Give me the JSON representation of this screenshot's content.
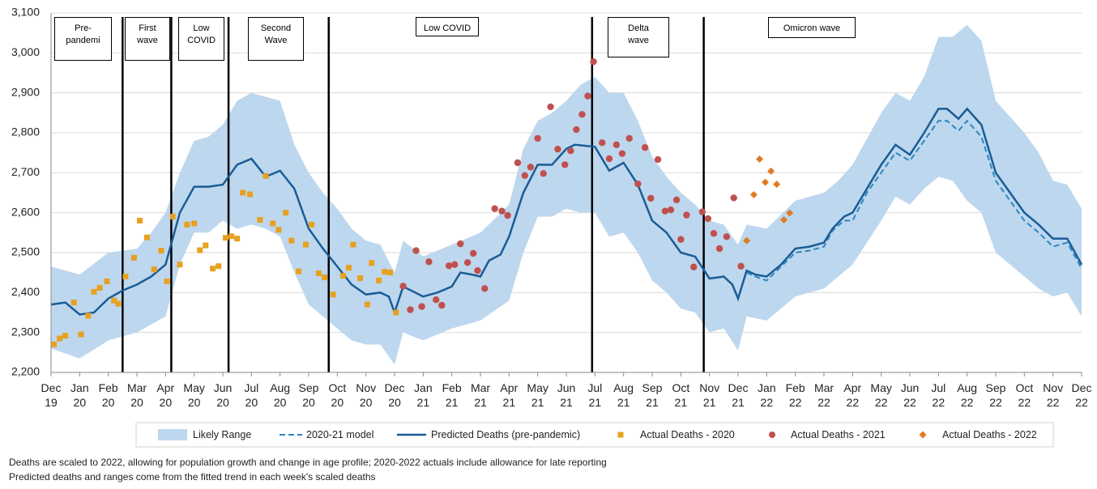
{
  "chart_data": {
    "type": "line",
    "xlim": [
      0,
      36
    ],
    "ylim": [
      2200,
      3100
    ],
    "yticks": [
      {
        "value": 2200,
        "label": "2,200"
      },
      {
        "value": 2300,
        "label": "2,300"
      },
      {
        "value": 2400,
        "label": "2,400"
      },
      {
        "value": 2500,
        "label": "2,500"
      },
      {
        "value": 2600,
        "label": "2,600"
      },
      {
        "value": 2700,
        "label": "2,700"
      },
      {
        "value": 2800,
        "label": "2,800"
      },
      {
        "value": 2900,
        "label": "2,900"
      },
      {
        "value": 3000,
        "label": "3,000"
      },
      {
        "value": 3100,
        "label": "3,100"
      }
    ],
    "xticks": [
      {
        "value": 0,
        "label": "Dec 19"
      },
      {
        "value": 1,
        "label": "Jan 20"
      },
      {
        "value": 2,
        "label": "Feb 20"
      },
      {
        "value": 3,
        "label": "Mar 20"
      },
      {
        "value": 4,
        "label": "Apr 20"
      },
      {
        "value": 5,
        "label": "May 20"
      },
      {
        "value": 6,
        "label": "Jun 20"
      },
      {
        "value": 7,
        "label": "Jul 20"
      },
      {
        "value": 8,
        "label": "Aug 20"
      },
      {
        "value": 9,
        "label": "Sep 20"
      },
      {
        "value": 10,
        "label": "Oct 20"
      },
      {
        "value": 11,
        "label": "Nov 20"
      },
      {
        "value": 12,
        "label": "Dec 20"
      },
      {
        "value": 13,
        "label": "Jan 21"
      },
      {
        "value": 14,
        "label": "Feb 21"
      },
      {
        "value": 15,
        "label": "Mar 21"
      },
      {
        "value": 16,
        "label": "Apr 21"
      },
      {
        "value": 17,
        "label": "May 21"
      },
      {
        "value": 18,
        "label": "Jun 21"
      },
      {
        "value": 19,
        "label": "Jul 21"
      },
      {
        "value": 20,
        "label": "Aug 21"
      },
      {
        "value": 21,
        "label": "Sep 21"
      },
      {
        "value": 22,
        "label": "Oct 21"
      },
      {
        "value": 23,
        "label": "Nov 21"
      },
      {
        "value": 24,
        "label": "Dec 21"
      },
      {
        "value": 25,
        "label": "Jan 22"
      },
      {
        "value": 26,
        "label": "Feb 22"
      },
      {
        "value": 27,
        "label": "Mar 22"
      },
      {
        "value": 28,
        "label": "Apr 22"
      },
      {
        "value": 29,
        "label": "May 22"
      },
      {
        "value": 30,
        "label": "Jun 22"
      },
      {
        "value": 31,
        "label": "Jul 22"
      },
      {
        "value": 32,
        "label": "Aug 22"
      },
      {
        "value": 33,
        "label": "Sep 22"
      },
      {
        "value": 34,
        "label": "Oct 22"
      },
      {
        "value": 35,
        "label": "Nov 22"
      },
      {
        "value": 36,
        "label": "Dec 22"
      }
    ],
    "grid": true,
    "period_boundaries": [
      2.5,
      4.2,
      6.2,
      9.7,
      18.9,
      22.8
    ],
    "annotations": [
      "Pre-pandemi",
      "First wave",
      "Low COVID",
      "Second Wave",
      "Low COVID",
      "Delta wave",
      "Omicron wave"
    ],
    "series": [
      {
        "name": "Likely Range",
        "style": "band",
        "color": "#bdd7ee",
        "x": [
          0,
          1,
          2,
          3,
          3.5,
          4,
          4.5,
          5,
          5.5,
          6,
          6.5,
          7,
          7.5,
          8,
          8.5,
          9,
          9.5,
          10,
          10.5,
          11,
          11.5,
          12,
          12.3,
          13,
          14,
          15,
          16,
          16.5,
          17,
          17.5,
          18,
          18.5,
          19,
          19.5,
          20,
          20.5,
          21,
          21.5,
          22,
          22.5,
          23,
          23.5,
          24,
          24.3,
          25,
          26,
          27,
          27.5,
          28,
          29,
          29.5,
          30,
          30.5,
          31,
          31.5,
          32,
          32.5,
          33,
          34,
          34.5,
          35,
          35.5,
          36
        ],
        "high": [
          2465,
          2445,
          2500,
          2510,
          2550,
          2600,
          2700,
          2780,
          2790,
          2820,
          2880,
          2900,
          2890,
          2880,
          2770,
          2700,
          2650,
          2610,
          2560,
          2530,
          2520,
          2450,
          2530,
          2490,
          2520,
          2550,
          2620,
          2760,
          2830,
          2850,
          2880,
          2920,
          2940,
          2900,
          2900,
          2830,
          2740,
          2690,
          2650,
          2620,
          2580,
          2570,
          2520,
          2570,
          2560,
          2630,
          2650,
          2680,
          2720,
          2850,
          2900,
          2880,
          2940,
          3040,
          3040,
          3070,
          3030,
          2880,
          2800,
          2750,
          2680,
          2670,
          2610
        ],
        "low": [
          2260,
          2235,
          2280,
          2300,
          2320,
          2340,
          2470,
          2550,
          2550,
          2580,
          2560,
          2570,
          2560,
          2540,
          2450,
          2370,
          2340,
          2310,
          2280,
          2270,
          2270,
          2220,
          2300,
          2280,
          2310,
          2330,
          2380,
          2500,
          2590,
          2590,
          2610,
          2600,
          2600,
          2540,
          2550,
          2500,
          2430,
          2400,
          2360,
          2350,
          2300,
          2310,
          2255,
          2340,
          2330,
          2390,
          2410,
          2440,
          2470,
          2580,
          2640,
          2620,
          2660,
          2690,
          2680,
          2630,
          2600,
          2500,
          2440,
          2410,
          2390,
          2400,
          2340
        ]
      },
      {
        "name": "2020-21 model",
        "style": "dashed",
        "color": "#2e86c1",
        "x": [
          24.3,
          24.6,
          25,
          25.5,
          26,
          26.5,
          27,
          27.3,
          27.7,
          28,
          28.5,
          29,
          29.5,
          30,
          30.5,
          31,
          31.3,
          31.7,
          32,
          32.5,
          33,
          33.5,
          34,
          34.5,
          35,
          35.5,
          36
        ],
        "values": [
          2450,
          2440,
          2430,
          2465,
          2500,
          2505,
          2515,
          2555,
          2580,
          2580,
          2650,
          2700,
          2750,
          2730,
          2780,
          2830,
          2830,
          2805,
          2830,
          2790,
          2680,
          2630,
          2580,
          2550,
          2515,
          2525,
          2460
        ]
      },
      {
        "name": "Predicted Deaths (pre-pandemic)",
        "style": "solid",
        "color": "#1a5c96",
        "x": [
          0,
          0.5,
          1,
          1.5,
          2,
          2.5,
          3,
          3.5,
          4,
          4.5,
          5,
          5.5,
          6,
          6.5,
          7,
          7.5,
          8,
          8.5,
          9,
          9.5,
          10,
          10.5,
          11,
          11.5,
          11.8,
          12,
          12.3,
          13,
          13.5,
          14,
          14.3,
          14.7,
          15,
          15.3,
          15.7,
          16,
          16.5,
          17,
          17.5,
          18,
          18.3,
          19,
          19.5,
          20,
          20.5,
          21,
          21.5,
          22,
          22.5,
          23,
          23.5,
          23.8,
          24,
          24.3,
          24.6,
          25,
          25.5,
          26,
          26.5,
          27,
          27.3,
          27.7,
          28,
          28.5,
          29,
          29.5,
          30,
          30.5,
          31,
          31.3,
          31.7,
          32,
          32.5,
          33,
          33.5,
          34,
          34.5,
          35,
          35.5,
          36
        ],
        "values": [
          2370,
          2375,
          2345,
          2350,
          2385,
          2405,
          2420,
          2440,
          2470,
          2600,
          2665,
          2665,
          2670,
          2720,
          2735,
          2690,
          2705,
          2660,
          2560,
          2510,
          2465,
          2420,
          2395,
          2400,
          2390,
          2350,
          2415,
          2390,
          2400,
          2415,
          2450,
          2445,
          2440,
          2480,
          2495,
          2540,
          2650,
          2720,
          2720,
          2760,
          2770,
          2765,
          2705,
          2725,
          2670,
          2580,
          2550,
          2500,
          2490,
          2435,
          2440,
          2420,
          2385,
          2455,
          2445,
          2440,
          2470,
          2510,
          2515,
          2525,
          2560,
          2590,
          2600,
          2660,
          2720,
          2770,
          2745,
          2800,
          2860,
          2860,
          2835,
          2860,
          2820,
          2700,
          2650,
          2600,
          2570,
          2535,
          2535,
          2470
        ]
      },
      {
        "name": "Actual Deaths - 2020",
        "style": "square",
        "color": "#e8a020",
        "x": [
          0.1,
          0.3,
          0.5,
          0.8,
          1.05,
          1.3,
          1.5,
          1.7,
          1.95,
          2.2,
          2.35,
          2.6,
          2.9,
          3.1,
          3.35,
          3.6,
          3.85,
          4.05,
          4.25,
          4.5,
          4.75,
          5.0,
          5.2,
          5.4,
          5.65,
          5.85,
          6.1,
          6.3,
          6.5,
          6.7,
          6.95,
          7.3,
          7.5,
          7.75,
          7.95,
          8.2,
          8.4,
          8.65,
          8.9,
          9.1,
          9.35,
          9.55,
          9.85,
          10.2,
          10.4,
          10.55,
          10.8,
          11.05,
          11.2,
          11.45,
          11.65,
          11.85,
          12.05
        ],
        "values": [
          2270,
          2285,
          2292,
          2375,
          2295,
          2342,
          2402,
          2412,
          2428,
          2380,
          2372,
          2440,
          2487,
          2580,
          2538,
          2458,
          2505,
          2428,
          2590,
          2470,
          2570,
          2573,
          2506,
          2518,
          2460,
          2466,
          2537,
          2541,
          2535,
          2650,
          2646,
          2582,
          2692,
          2573,
          2557,
          2600,
          2530,
          2453,
          2520,
          2570,
          2448,
          2438,
          2395,
          2442,
          2462,
          2520,
          2436,
          2370,
          2474,
          2430,
          2452,
          2450,
          2350
        ]
      },
      {
        "name": "Actual Deaths - 2021",
        "style": "circle",
        "color": "#c0504d",
        "x": [
          12.3,
          12.55,
          12.75,
          12.95,
          13.2,
          13.45,
          13.65,
          13.9,
          14.1,
          14.3,
          14.55,
          14.75,
          14.9,
          15.15,
          15.5,
          15.75,
          15.95,
          16.3,
          16.55,
          16.75,
          17.0,
          17.2,
          17.45,
          17.7,
          17.95,
          18.15,
          18.35,
          18.55,
          18.75,
          18.95,
          19.25,
          19.5,
          19.75,
          19.95,
          20.2,
          20.5,
          20.75,
          20.95,
          21.2,
          21.45,
          21.65,
          21.85,
          22.0,
          22.2,
          22.45,
          22.75,
          22.95,
          23.15,
          23.35,
          23.6,
          23.85,
          24.1
        ],
        "values": [
          2416,
          2357,
          2505,
          2365,
          2477,
          2382,
          2368,
          2467,
          2470,
          2522,
          2475,
          2498,
          2455,
          2410,
          2610,
          2604,
          2593,
          2725,
          2693,
          2714,
          2786,
          2698,
          2865,
          2759,
          2720,
          2755,
          2808,
          2846,
          2892,
          2978,
          2775,
          2735,
          2770,
          2748,
          2786,
          2672,
          2763,
          2636,
          2733,
          2604,
          2607,
          2632,
          2533,
          2594,
          2464,
          2602,
          2585,
          2548,
          2510,
          2540,
          2637,
          2466
        ]
      },
      {
        "name": "Actual Deaths - 2022",
        "style": "diamond",
        "color": "#e07b20",
        "x": [
          24.3,
          24.55,
          24.75,
          24.95,
          25.15,
          25.35,
          25.6,
          25.8
        ],
        "values": [
          2530,
          2645,
          2734,
          2676,
          2704,
          2671,
          2582,
          2599
        ]
      }
    ],
    "footnotes": [
      "Deaths are scaled to 2022,  allowing for population growth and change in age profile; 2020-2022  actuals include allowance for late reporting",
      "Predicted deaths and ranges come from the fitted trend in each week's scaled deaths"
    ]
  }
}
